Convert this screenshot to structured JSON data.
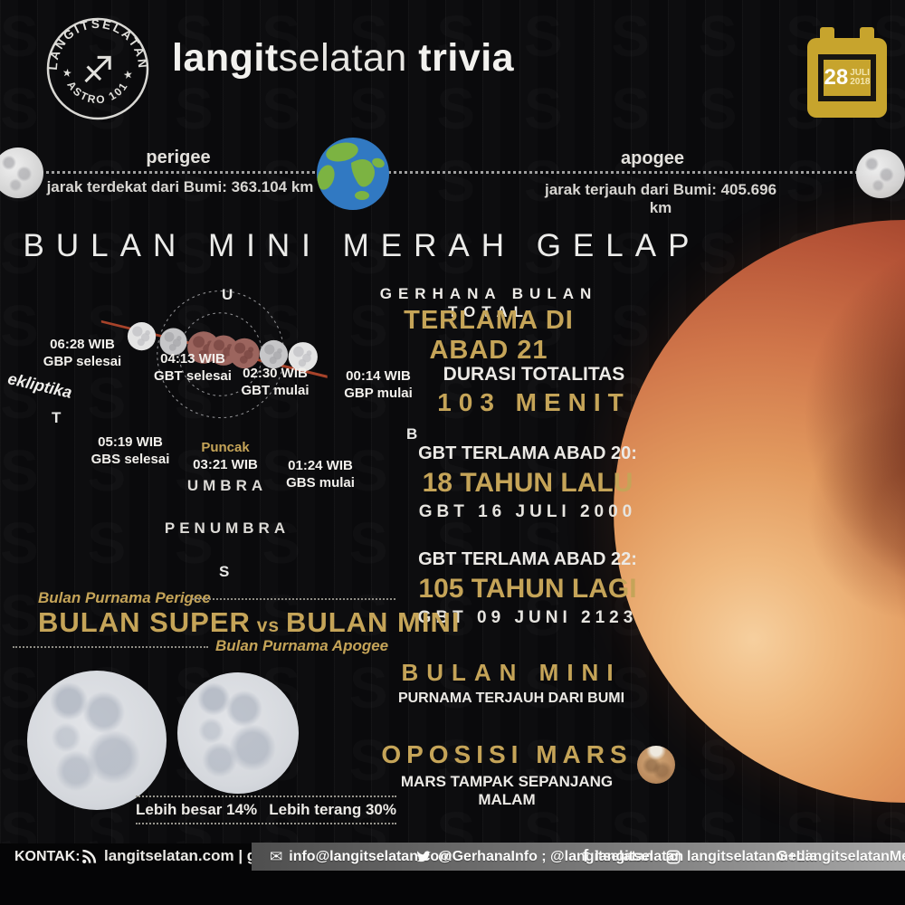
{
  "theme": {
    "gold": "#c5a458",
    "bg": "#0a0a0c",
    "calendar_gold": "#c7a42d",
    "watermark_char": "S"
  },
  "header": {
    "badge": {
      "arc_top": "LANGITSELATAN",
      "arc_bottom": "★ ASTRO 101 ★",
      "center_glyph": "♐"
    },
    "brand_bold": "langit",
    "brand_light": "selatan",
    "brand_suffix": " trivia",
    "calendar": {
      "day": "28",
      "month": "JULI",
      "year": "2018"
    }
  },
  "orbit": {
    "perigee_label": "perigee",
    "perigee_detail": "jarak terdekat dari Bumi: 363.104 km",
    "apogee_label": "apogee",
    "apogee_detail": "jarak terjauh dari Bumi: 405.696 km"
  },
  "main_title": "BULAN MINI MERAH GELAP",
  "eclipse_heading": {
    "line1": "GERHANA BULAN TOTAL",
    "line2": "TERLAMA DI ABAD 21"
  },
  "diagram": {
    "ecliptic": "ekliptika",
    "north": "U",
    "south": "S",
    "east": "T",
    "west": "B",
    "umbra": "UMBRA",
    "penumbra": "PENUMBRA",
    "events": [
      {
        "l1": "06:28 WIB",
        "l2": "GBP selesai"
      },
      {
        "l1": "05:19 WIB",
        "l2": "GBS selesai"
      },
      {
        "l1": "04:13 WIB",
        "l2": "GBT selesai"
      },
      {
        "l1": "Puncak",
        "l2": "03:21 WIB"
      },
      {
        "l1": "02:30 WIB",
        "l2": "GBT mulai"
      },
      {
        "l1": "01:24 WIB",
        "l2": "GBS mulai"
      },
      {
        "l1": "00:14 WIB",
        "l2": "GBP mulai"
      }
    ]
  },
  "facts": {
    "durasi": {
      "title": "DURASI TOTALITAS",
      "value": "103 MENIT"
    },
    "abad20": {
      "title": "GBT TERLAMA ABAD 20:",
      "value": "18 TAHUN LALU",
      "detail": "GBT 16 JULI 2000"
    },
    "abad22": {
      "title": "GBT TERLAMA ABAD 22:",
      "value": "105 TAHUN LAGI",
      "detail": "GBT 09 JUNI 2123"
    },
    "bulan_mini": {
      "title": "BULAN MINI",
      "detail": "PURNAMA TERJAUH DARI BUMI"
    },
    "oposisi_mars": {
      "title": "OPOSISI MARS",
      "detail": "MARS TAMPAK SEPANJANG MALAM"
    }
  },
  "comparison": {
    "perigee_note": "Bulan Purnama Perigee",
    "title_left": "BULAN SUPER",
    "title_vs": " vs ",
    "title_right": "BULAN MINI",
    "apogee_note": "Bulan Purnama Apogee",
    "stat_size": "Lebih besar 14%",
    "stat_brightness": "Lebih terang 30%"
  },
  "footer": {
    "kontak": "KONTAK:",
    "web": "langitselatan.com | gerhana.info",
    "mail_icon": "✉",
    "email": "info@langitselatan.com",
    "twitter": "@GerhanaInfo ; @langitselatan",
    "facebook_icon": "f",
    "facebook": "langitselatan",
    "instagram": "langitselatanmedia",
    "gplus": "G+LangitselatanMedia"
  }
}
